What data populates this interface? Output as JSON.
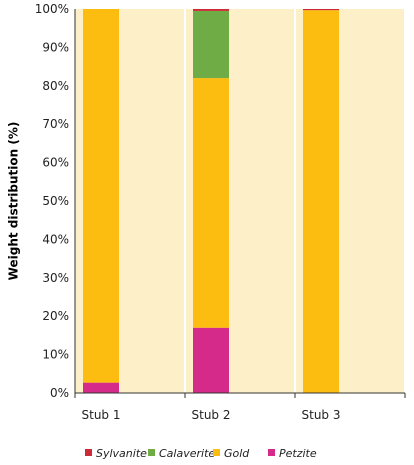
{
  "chart_data": {
    "type": "bar",
    "stacked": true,
    "categories": [
      "Stub 1",
      "Stub 2",
      "Stub 3"
    ],
    "xlabel": "",
    "ylabel": "Weight distribution (%)",
    "ylim": [
      0,
      100
    ],
    "yticks": [
      "0%",
      "10%",
      "20%",
      "30%",
      "40%",
      "50%",
      "60%",
      "70%",
      "80%",
      "90%",
      "100%"
    ],
    "grid": true,
    "legend_position": "bottom",
    "plot_background": "#fdf0c8",
    "series": [
      {
        "name": "Petzite",
        "color": "#d62a8a",
        "values": [
          2.7,
          17,
          0
        ]
      },
      {
        "name": "Gold",
        "color": "#fdbd10",
        "values": [
          97.3,
          65,
          99.7
        ]
      },
      {
        "name": "Calaverite",
        "color": "#6fac46",
        "values": [
          0,
          17.5,
          0
        ]
      },
      {
        "name": "Sylvanite",
        "color": "#cc2a36",
        "values": [
          0,
          0.5,
          0.3
        ]
      }
    ],
    "legend_order": [
      "Sylvanite",
      "Calaverite",
      "Gold",
      "Petzite"
    ]
  }
}
